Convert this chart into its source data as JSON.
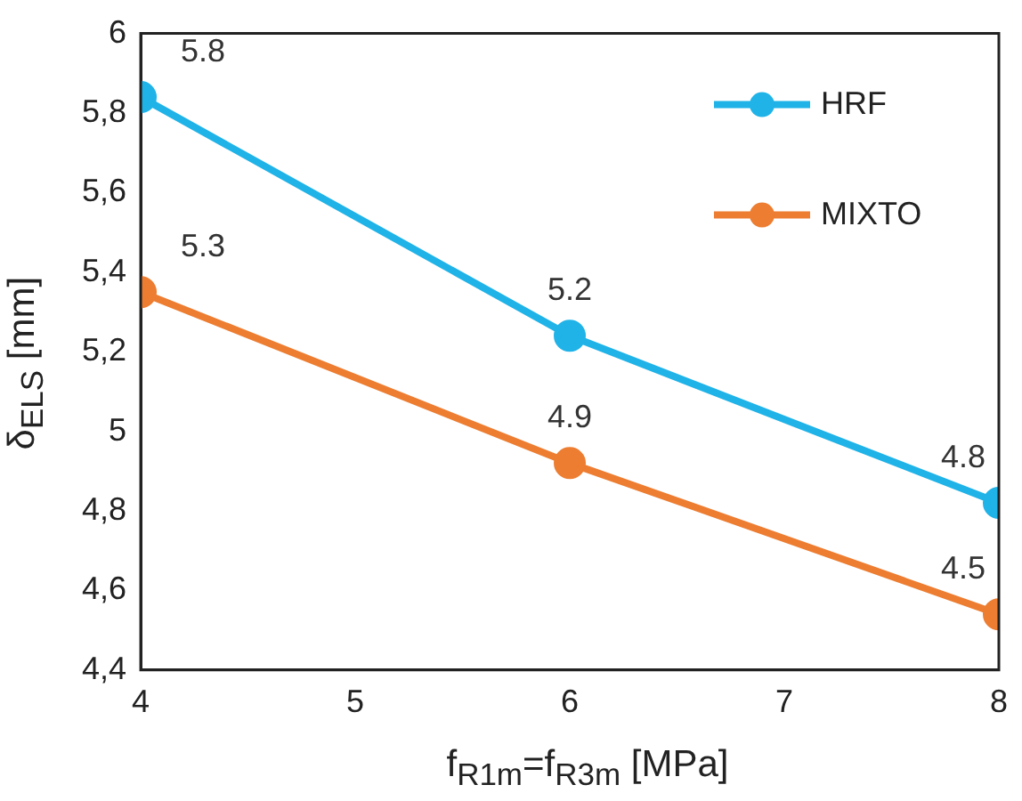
{
  "chart_data": {
    "type": "line",
    "xlabel": "f$_{R1m}$=f$_{R3m}$ [MPa]",
    "ylabel": "δ$_{ELS}$ [mm]",
    "x": [
      4,
      6,
      8
    ],
    "series": [
      {
        "name": "HRF",
        "color": "#1fb3e8",
        "values": [
          5.84,
          5.24,
          4.82
        ],
        "value_labels": [
          "5.8",
          "5.2",
          "4.8"
        ]
      },
      {
        "name": "MIXTO",
        "color": "#ed7d31",
        "values": [
          5.35,
          4.92,
          4.54
        ],
        "value_labels": [
          "5.3",
          "4.9",
          "4.5"
        ]
      }
    ],
    "xlim": [
      4,
      8
    ],
    "xticks": [
      4,
      5,
      6,
      7,
      8
    ],
    "ylim": [
      4.4,
      6
    ],
    "yticks": [
      {
        "value": 4.4,
        "label": "4,4"
      },
      {
        "value": 4.6,
        "label": "4,6"
      },
      {
        "value": 4.8,
        "label": "4,8"
      },
      {
        "value": 5,
        "label": "5"
      },
      {
        "value": 5.2,
        "label": "5,2"
      },
      {
        "value": 5.4,
        "label": "5,4"
      },
      {
        "value": 5.6,
        "label": "5,6"
      },
      {
        "value": 5.8,
        "label": "5,8"
      },
      {
        "value": 6,
        "label": "6"
      }
    ],
    "grid": false,
    "legend": "top right",
    "marker": "circle",
    "line_style": "solid"
  }
}
